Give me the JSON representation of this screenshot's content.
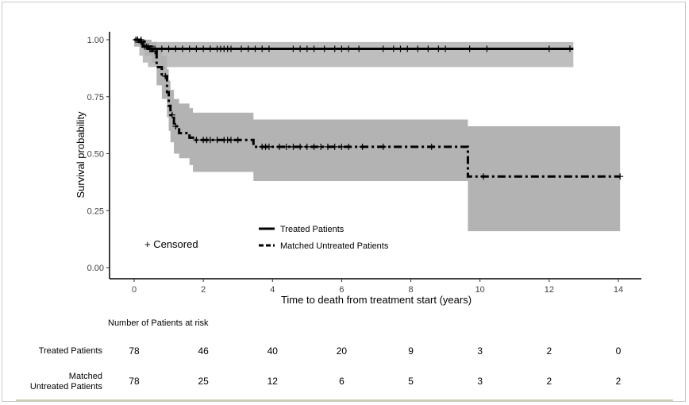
{
  "chart_data": {
    "type": "line",
    "subtype": "kaplan-meier",
    "xlabel": "Time to death from treatment start (years)",
    "ylabel": "Survival probability",
    "xlim": [
      -0.4,
      14.8
    ],
    "ylim": [
      -0.05,
      1.02
    ],
    "xticks": [
      0,
      2,
      4,
      6,
      8,
      10,
      12,
      14
    ],
    "yticks": [
      "0.00",
      "0.25",
      "0.50",
      "0.75",
      "1.00"
    ],
    "grid": false,
    "legend": {
      "placement": "bottom-center",
      "entries": [
        "Treated Patients",
        "Matched Untreated Patients"
      ]
    },
    "censored_label": "+ Censored",
    "ci_color": "#b3b3b3",
    "line_color": "#000000",
    "series": [
      {
        "name": "Treated Patients",
        "style": "solid",
        "steps": [
          [
            0,
            1.0
          ],
          [
            0.15,
            0.99
          ],
          [
            0.25,
            0.97
          ],
          [
            0.4,
            0.96
          ],
          [
            12.7,
            0.96
          ]
        ],
        "ci": [
          [
            0,
            1.0,
            0.97
          ],
          [
            0.15,
            1.0,
            0.93
          ],
          [
            0.25,
            0.99,
            0.9
          ],
          [
            0.4,
            0.99,
            0.88
          ],
          [
            12.7,
            0.99,
            0.88
          ]
        ],
        "censored": [
          0.05,
          0.1,
          0.2,
          0.3,
          0.35,
          0.45,
          0.55,
          0.6,
          0.8,
          1.0,
          1.2,
          1.4,
          1.6,
          1.8,
          2.0,
          2.2,
          2.4,
          2.5,
          2.6,
          2.7,
          2.8,
          3.1,
          3.3,
          3.5,
          3.7,
          3.9,
          4.6,
          4.8,
          5.0,
          5.2,
          5.5,
          5.8,
          6.0,
          6.2,
          6.5,
          7.2,
          7.5,
          7.7,
          7.9,
          8.2,
          8.5,
          8.8,
          9.0,
          9.7,
          10.2,
          12.0,
          12.6
        ]
      },
      {
        "name": "Matched Untreated Patients",
        "style": "dashed",
        "steps": [
          [
            0,
            1.0
          ],
          [
            0.3,
            0.97
          ],
          [
            0.5,
            0.95
          ],
          [
            0.65,
            0.88
          ],
          [
            0.8,
            0.84
          ],
          [
            0.95,
            0.77
          ],
          [
            1.0,
            0.71
          ],
          [
            1.05,
            0.67
          ],
          [
            1.15,
            0.62
          ],
          [
            1.3,
            0.59
          ],
          [
            1.6,
            0.57
          ],
          [
            1.7,
            0.56
          ],
          [
            3.45,
            0.53
          ],
          [
            9.65,
            0.4
          ],
          [
            14.05,
            0.4
          ]
        ],
        "ci": [
          [
            0,
            1.0,
            0.97
          ],
          [
            0.3,
            1.0,
            0.93
          ],
          [
            0.5,
            0.99,
            0.9
          ],
          [
            0.65,
            0.96,
            0.8
          ],
          [
            0.8,
            0.93,
            0.74
          ],
          [
            0.95,
            0.87,
            0.66
          ],
          [
            1.0,
            0.82,
            0.6
          ],
          [
            1.05,
            0.78,
            0.55
          ],
          [
            1.15,
            0.74,
            0.5
          ],
          [
            1.3,
            0.72,
            0.48
          ],
          [
            1.6,
            0.7,
            0.45
          ],
          [
            1.7,
            0.68,
            0.42
          ],
          [
            3.45,
            0.65,
            0.38
          ],
          [
            9.65,
            0.62,
            0.16
          ],
          [
            14.05,
            0.62,
            0.16
          ]
        ],
        "censored": [
          0.1,
          0.2,
          0.4,
          0.6,
          0.9,
          1.1,
          1.2,
          1.8,
          2.0,
          2.1,
          2.2,
          2.4,
          2.6,
          2.7,
          2.8,
          3.0,
          3.7,
          3.8,
          3.9,
          4.2,
          4.4,
          4.6,
          4.8,
          5.0,
          5.2,
          5.4,
          5.6,
          5.8,
          6.0,
          6.2,
          6.6,
          7.2,
          8.6,
          10.1,
          14.05
        ]
      }
    ]
  },
  "risk_table": {
    "title": "Number of Patients at risk",
    "rows": [
      {
        "label": "Treated Patients",
        "values": [
          "78",
          "46",
          "40",
          "20",
          "9",
          "3",
          "2",
          "0"
        ]
      },
      {
        "label_line1": "Matched",
        "label_line2": "Untreated Patients",
        "values": [
          "78",
          "25",
          "12",
          "6",
          "5",
          "3",
          "2",
          "2"
        ]
      }
    ]
  }
}
